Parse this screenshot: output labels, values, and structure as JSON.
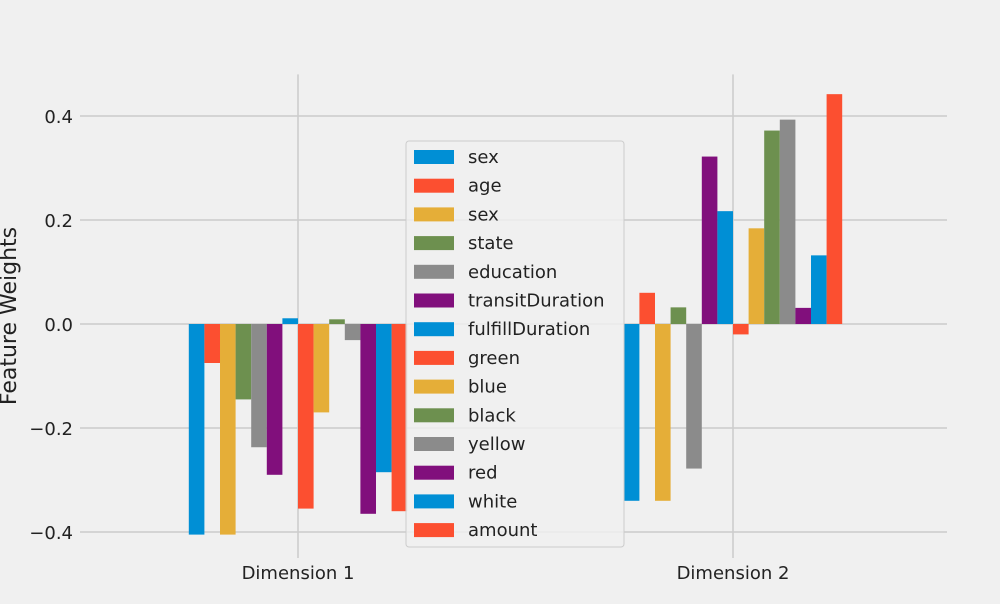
{
  "chart_data": {
    "type": "bar",
    "categories": [
      "Dimension 1",
      "Dimension 2"
    ],
    "ylabel": "Feature Weights",
    "xlabel": "",
    "title": "",
    "ylim": [
      -0.45,
      0.48
    ],
    "yticks": [
      {
        "value": 0.4,
        "label": "0.4"
      },
      {
        "value": 0.2,
        "label": "0.2"
      },
      {
        "value": 0.0,
        "label": "0.0"
      },
      {
        "value": -0.2,
        "label": "−0.2"
      },
      {
        "value": -0.4,
        "label": "−0.4"
      }
    ],
    "grid": true,
    "legend_position": "center",
    "series": [
      {
        "name": "sex",
        "color": "#008fd5",
        "values": [
          -0.405,
          -0.34
        ]
      },
      {
        "name": "age",
        "color": "#fc4f30",
        "values": [
          -0.075,
          0.06
        ]
      },
      {
        "name": "sex",
        "color": "#e5ae38",
        "values": [
          -0.405,
          -0.34
        ]
      },
      {
        "name": "state",
        "color": "#6d904f",
        "values": [
          -0.145,
          0.032
        ]
      },
      {
        "name": "education",
        "color": "#8b8b8b",
        "values": [
          -0.237,
          -0.278
        ]
      },
      {
        "name": "transitDuration",
        "color": "#810f7c",
        "values": [
          -0.29,
          0.322
        ]
      },
      {
        "name": "fulfillDuration",
        "color": "#008fd5",
        "values": [
          0.011,
          0.217
        ]
      },
      {
        "name": "green",
        "color": "#fc4f30",
        "values": [
          -0.355,
          -0.02
        ]
      },
      {
        "name": "blue",
        "color": "#e5ae38",
        "values": [
          -0.17,
          0.184
        ]
      },
      {
        "name": "black",
        "color": "#6d904f",
        "values": [
          0.009,
          0.372
        ]
      },
      {
        "name": "yellow",
        "color": "#8b8b8b",
        "values": [
          -0.031,
          0.393
        ]
      },
      {
        "name": "red",
        "color": "#810f7c",
        "values": [
          -0.365,
          0.031
        ]
      },
      {
        "name": "white",
        "color": "#008fd5",
        "values": [
          -0.285,
          0.132
        ]
      },
      {
        "name": "amount",
        "color": "#fc4f30",
        "values": [
          -0.36,
          0.442
        ]
      }
    ]
  }
}
